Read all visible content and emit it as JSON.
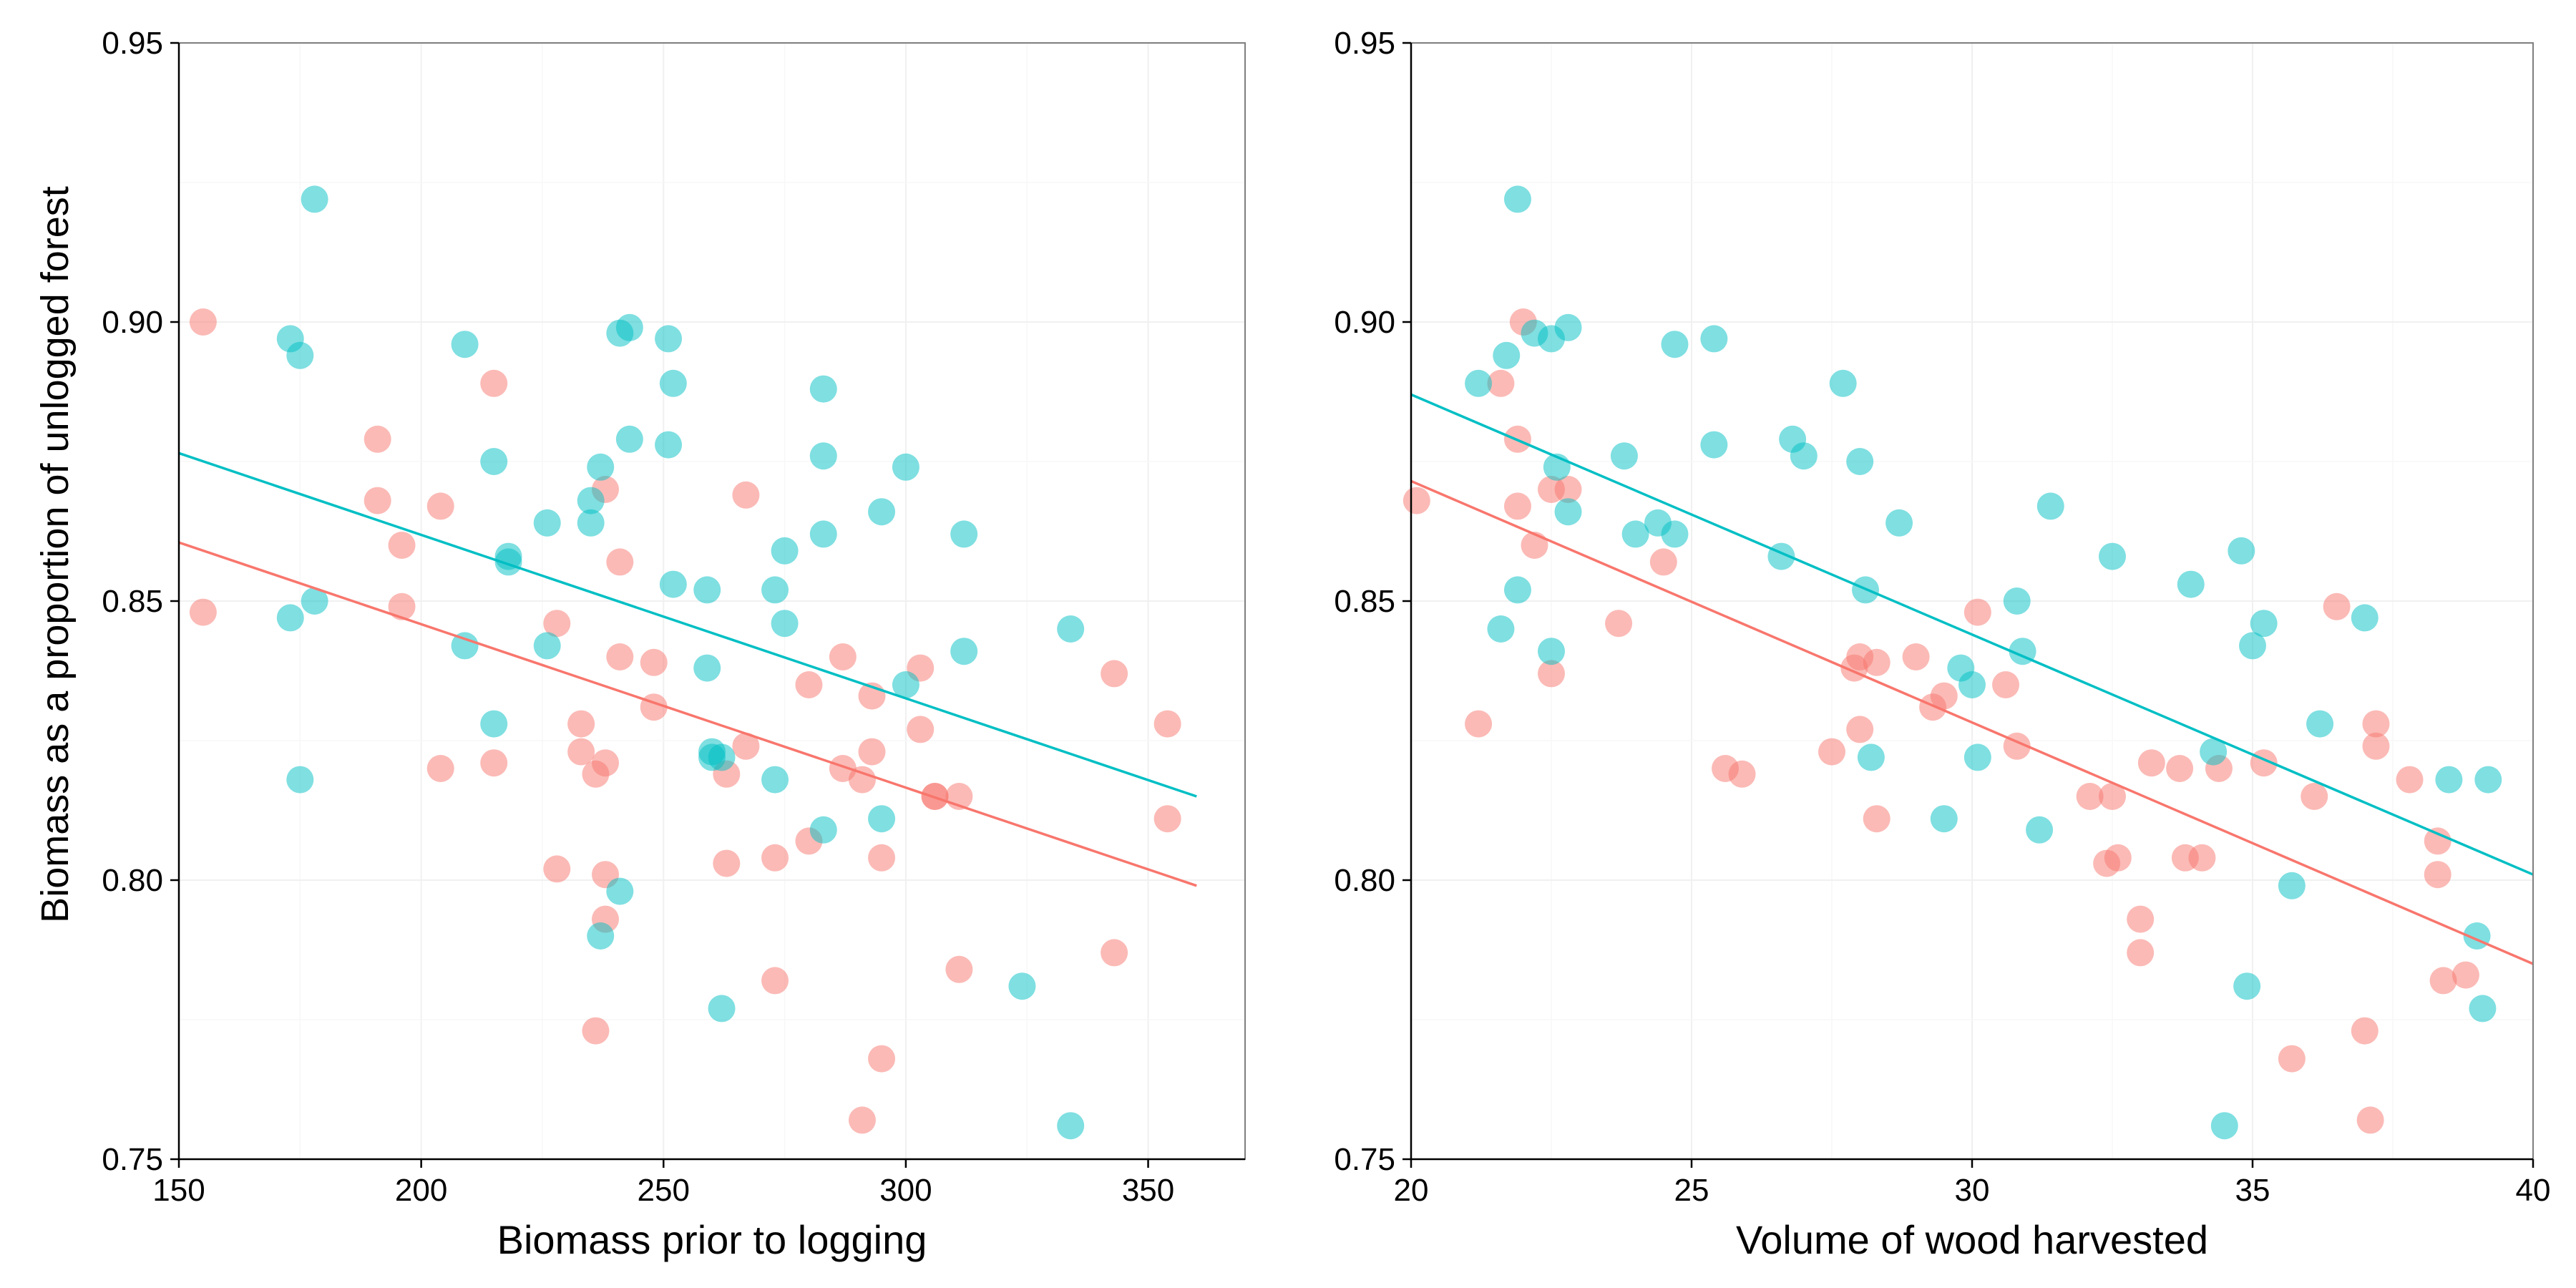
{
  "figure": {
    "colors": {
      "series_a": "#F8766D",
      "series_b": "#00BFC4"
    },
    "shared_ylabel": "Biomass as a proportion of unlogged forest"
  },
  "chart_data": [
    {
      "type": "scatter",
      "xlabel": "Biomass prior to logging",
      "ylabel": "Biomass as a proportion of unlogged forest",
      "xlim": [
        150,
        370
      ],
      "ylim": [
        0.75,
        0.95
      ],
      "x_ticks": [
        150,
        200,
        250,
        300,
        350
      ],
      "y_ticks": [
        0.75,
        0.8,
        0.85,
        0.9,
        0.95
      ],
      "grid": true,
      "legend": "none",
      "series": [
        {
          "color": "#F8766D",
          "points": [
            [
              155,
              0.9
            ],
            [
              155,
              0.848
            ],
            [
              191,
              0.879
            ],
            [
              191,
              0.868
            ],
            [
              196,
              0.86
            ],
            [
              196,
              0.849
            ],
            [
              204,
              0.867
            ],
            [
              204,
              0.82
            ],
            [
              215,
              0.889
            ],
            [
              215,
              0.821
            ],
            [
              228,
              0.846
            ],
            [
              228,
              0.802
            ],
            [
              233,
              0.828
            ],
            [
              233,
              0.823
            ],
            [
              236,
              0.819
            ],
            [
              236,
              0.773
            ],
            [
              238,
              0.87
            ],
            [
              238,
              0.821
            ],
            [
              238,
              0.801
            ],
            [
              238,
              0.793
            ],
            [
              241,
              0.857
            ],
            [
              241,
              0.84
            ],
            [
              248,
              0.839
            ],
            [
              248,
              0.831
            ],
            [
              263,
              0.819
            ],
            [
              263,
              0.803
            ],
            [
              267,
              0.869
            ],
            [
              267,
              0.824
            ],
            [
              273,
              0.804
            ],
            [
              273,
              0.782
            ],
            [
              280,
              0.835
            ],
            [
              280,
              0.807
            ],
            [
              287,
              0.84
            ],
            [
              287,
              0.82
            ],
            [
              291,
              0.818
            ],
            [
              291,
              0.757
            ],
            [
              293,
              0.833
            ],
            [
              293,
              0.823
            ],
            [
              295,
              0.804
            ],
            [
              295,
              0.768
            ],
            [
              303,
              0.838
            ],
            [
              303,
              0.827
            ],
            [
              306,
              0.815
            ],
            [
              306,
              0.815
            ],
            [
              311,
              0.815
            ],
            [
              311,
              0.784
            ],
            [
              343,
              0.837
            ],
            [
              343,
              0.787
            ],
            [
              354,
              0.828
            ],
            [
              354,
              0.811
            ]
          ],
          "trend": [
            [
              150,
              0.8605
            ],
            [
              360,
              0.799
            ]
          ]
        },
        {
          "color": "#00BFC4",
          "points": [
            [
              173,
              0.897
            ],
            [
              173,
              0.847
            ],
            [
              175,
              0.894
            ],
            [
              175,
              0.818
            ],
            [
              178,
              0.922
            ],
            [
              178,
              0.85
            ],
            [
              209,
              0.896
            ],
            [
              209,
              0.842
            ],
            [
              215,
              0.875
            ],
            [
              215,
              0.828
            ],
            [
              218,
              0.858
            ],
            [
              218,
              0.857
            ],
            [
              226,
              0.864
            ],
            [
              226,
              0.842
            ],
            [
              235,
              0.868
            ],
            [
              235,
              0.864
            ],
            [
              237,
              0.874
            ],
            [
              237,
              0.79
            ],
            [
              241,
              0.898
            ],
            [
              241,
              0.798
            ],
            [
              243,
              0.899
            ],
            [
              243,
              0.879
            ],
            [
              251,
              0.897
            ],
            [
              251,
              0.878
            ],
            [
              252,
              0.889
            ],
            [
              252,
              0.853
            ],
            [
              259,
              0.852
            ],
            [
              259,
              0.838
            ],
            [
              260,
              0.823
            ],
            [
              260,
              0.822
            ],
            [
              262,
              0.822
            ],
            [
              262,
              0.777
            ],
            [
              273,
              0.852
            ],
            [
              273,
              0.818
            ],
            [
              275,
              0.859
            ],
            [
              275,
              0.846
            ],
            [
              283,
              0.888
            ],
            [
              283,
              0.876
            ],
            [
              283,
              0.862
            ],
            [
              283,
              0.809
            ],
            [
              295,
              0.866
            ],
            [
              295,
              0.811
            ],
            [
              300,
              0.874
            ],
            [
              300,
              0.835
            ],
            [
              312,
              0.862
            ],
            [
              312,
              0.841
            ],
            [
              324,
              0.781
            ],
            [
              334,
              0.845
            ],
            [
              334,
              0.756
            ]
          ],
          "trend": [
            [
              150,
              0.8765
            ],
            [
              360,
              0.815
            ]
          ]
        }
      ]
    },
    {
      "type": "scatter",
      "xlabel": "Volume of wood harvested",
      "ylabel": "",
      "xlim": [
        20,
        40
      ],
      "ylim": [
        0.75,
        0.95
      ],
      "x_ticks": [
        20,
        25,
        30,
        35,
        40
      ],
      "y_ticks": [
        0.75,
        0.8,
        0.85,
        0.9,
        0.95
      ],
      "grid": true,
      "legend": "none",
      "series": [
        {
          "color": "#F8766D",
          "points": [
            [
              20.1,
              0.868
            ],
            [
              21.2,
              0.828
            ],
            [
              21.6,
              0.889
            ],
            [
              21.9,
              0.879
            ],
            [
              21.9,
              0.867
            ],
            [
              22.0,
              0.9
            ],
            [
              22.2,
              0.86
            ],
            [
              22.5,
              0.87
            ],
            [
              22.5,
              0.837
            ],
            [
              22.8,
              0.87
            ],
            [
              23.7,
              0.846
            ],
            [
              24.5,
              0.857
            ],
            [
              25.6,
              0.82
            ],
            [
              25.9,
              0.819
            ],
            [
              27.5,
              0.823
            ],
            [
              27.9,
              0.838
            ],
            [
              28.0,
              0.84
            ],
            [
              28.0,
              0.827
            ],
            [
              28.3,
              0.839
            ],
            [
              28.3,
              0.811
            ],
            [
              29.0,
              0.84
            ],
            [
              29.3,
              0.831
            ],
            [
              29.5,
              0.833
            ],
            [
              30.1,
              0.848
            ],
            [
              30.6,
              0.835
            ],
            [
              30.8,
              0.824
            ],
            [
              32.1,
              0.815
            ],
            [
              32.4,
              0.803
            ],
            [
              32.5,
              0.815
            ],
            [
              32.6,
              0.804
            ],
            [
              33.0,
              0.793
            ],
            [
              33.0,
              0.787
            ],
            [
              33.2,
              0.821
            ],
            [
              33.7,
              0.82
            ],
            [
              33.8,
              0.804
            ],
            [
              34.1,
              0.804
            ],
            [
              34.4,
              0.82
            ],
            [
              35.2,
              0.821
            ],
            [
              35.7,
              0.768
            ],
            [
              36.1,
              0.815
            ],
            [
              36.5,
              0.849
            ],
            [
              37.0,
              0.773
            ],
            [
              37.1,
              0.757
            ],
            [
              37.2,
              0.828
            ],
            [
              37.2,
              0.824
            ],
            [
              37.8,
              0.818
            ],
            [
              38.3,
              0.807
            ],
            [
              38.3,
              0.801
            ],
            [
              38.4,
              0.782
            ],
            [
              38.8,
              0.783
            ]
          ],
          "trend": [
            [
              20,
              0.8715
            ],
            [
              40,
              0.785
            ]
          ]
        },
        {
          "color": "#00BFC4",
          "points": [
            [
              21.2,
              0.889
            ],
            [
              21.6,
              0.845
            ],
            [
              21.7,
              0.894
            ],
            [
              21.9,
              0.922
            ],
            [
              21.9,
              0.852
            ],
            [
              22.2,
              0.898
            ],
            [
              22.5,
              0.897
            ],
            [
              22.5,
              0.841
            ],
            [
              22.6,
              0.874
            ],
            [
              22.8,
              0.899
            ],
            [
              22.8,
              0.866
            ],
            [
              23.8,
              0.876
            ],
            [
              24.0,
              0.862
            ],
            [
              24.4,
              0.864
            ],
            [
              24.7,
              0.896
            ],
            [
              24.7,
              0.862
            ],
            [
              25.4,
              0.897
            ],
            [
              25.4,
              0.878
            ],
            [
              26.6,
              0.858
            ],
            [
              26.8,
              0.879
            ],
            [
              27.0,
              0.876
            ],
            [
              27.7,
              0.889
            ],
            [
              28.0,
              0.875
            ],
            [
              28.1,
              0.852
            ],
            [
              28.2,
              0.822
            ],
            [
              28.7,
              0.864
            ],
            [
              29.5,
              0.811
            ],
            [
              29.8,
              0.838
            ],
            [
              30.0,
              0.835
            ],
            [
              30.1,
              0.822
            ],
            [
              30.8,
              0.85
            ],
            [
              30.9,
              0.841
            ],
            [
              31.2,
              0.809
            ],
            [
              31.4,
              0.867
            ],
            [
              32.5,
              0.858
            ],
            [
              33.9,
              0.853
            ],
            [
              34.3,
              0.823
            ],
            [
              34.5,
              0.756
            ],
            [
              34.8,
              0.859
            ],
            [
              34.9,
              0.781
            ],
            [
              35.0,
              0.842
            ],
            [
              35.2,
              0.846
            ],
            [
              35.7,
              0.799
            ],
            [
              36.2,
              0.828
            ],
            [
              37.0,
              0.847
            ],
            [
              38.5,
              0.818
            ],
            [
              39.0,
              0.79
            ],
            [
              39.1,
              0.777
            ],
            [
              39.2,
              0.818
            ]
          ],
          "trend": [
            [
              20,
              0.887
            ],
            [
              40,
              0.801
            ]
          ]
        }
      ]
    }
  ]
}
